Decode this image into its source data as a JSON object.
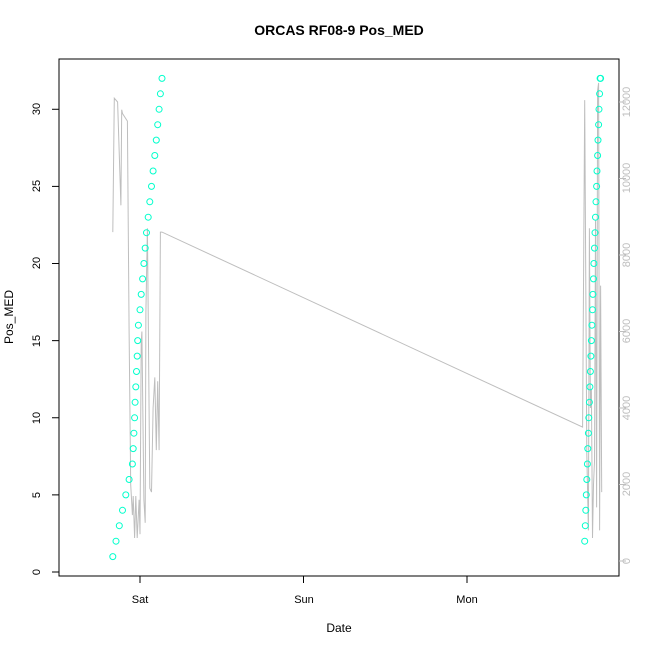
{
  "chart_data": {
    "type": "scatter",
    "title": "ORCAS RF08-9 Pos_MED",
    "xlabel": "Date",
    "ylabel": "Pos_MED",
    "y2label": "",
    "x_ticks": [
      "Sat",
      "Sun",
      "Mon"
    ],
    "y_ticks": [
      "0",
      "5",
      "10",
      "15",
      "20",
      "25",
      "30"
    ],
    "y2_ticks": [
      "0",
      "2000",
      "4000",
      "6000",
      "8000",
      "10000",
      "12000"
    ],
    "ylim": [
      0,
      33
    ],
    "y2lim": [
      0,
      12800
    ],
    "point_color": "#00ffcc",
    "line_color": "#bebebe",
    "series": [
      {
        "role": "points",
        "axis": "left",
        "x": [
          "Fri 20:00",
          "Fri 20:29",
          "Fri 20:58",
          "Fri 21:26",
          "Fri 21:55",
          "Fri 22:24",
          "Fri 22:53",
          "Fri 23:00",
          "Fri 23:06",
          "Fri 23:12",
          "Fri 23:17",
          "Fri 23:23",
          "Fri 23:29",
          "Fri 23:35",
          "Fri 23:40",
          "Fri 23:46",
          "Sat 00:00",
          "Sat 00:11",
          "Sat 00:23",
          "Sat 00:34",
          "Sat 00:46",
          "Sat 00:57",
          "Sat 01:12",
          "Sat 01:26",
          "Sat 01:41",
          "Sat 01:55",
          "Sat 02:10",
          "Sat 02:24",
          "Sat 02:36",
          "Sat 02:48",
          "Sat 03:00",
          "Sat 03:14"
        ],
        "values": [
          1,
          2,
          3,
          4,
          5,
          6,
          7,
          8,
          9,
          10,
          11,
          12,
          13,
          14,
          15,
          16,
          17,
          18,
          19,
          20,
          21,
          22,
          23,
          24,
          25,
          26,
          27,
          28,
          29,
          30,
          31,
          32
        ]
      },
      {
        "role": "points",
        "axis": "left",
        "x": [
          "Mon 17:17",
          "Mon 17:22",
          "Mon 17:26",
          "Mon 17:31",
          "Mon 17:35",
          "Mon 17:40",
          "Mon 17:44",
          "Mon 17:49",
          "Mon 17:53",
          "Mon 17:58",
          "Mon 18:02",
          "Mon 18:07",
          "Mon 18:11",
          "Mon 18:16",
          "Mon 18:20",
          "Mon 18:25",
          "Mon 18:29",
          "Mon 18:34",
          "Mon 18:38",
          "Mon 18:43",
          "Mon 18:47",
          "Mon 18:52",
          "Mon 18:56",
          "Mon 19:01",
          "Mon 19:05",
          "Mon 19:10",
          "Mon 19:14",
          "Mon 19:19",
          "Mon 19:23",
          "Mon 19:28",
          "Mon 19:32",
          "Mon 19:37"
        ],
        "values": [
          2,
          3,
          4,
          5,
          6,
          7,
          8,
          9,
          10,
          11,
          12,
          13,
          14,
          15,
          16,
          17,
          18,
          19,
          20,
          21,
          22,
          23,
          24,
          25,
          26,
          27,
          28,
          29,
          30,
          31,
          32,
          32
        ]
      },
      {
        "role": "line",
        "axis": "right",
        "x": [
          "Fri 20:00",
          "Fri 20:14",
          "Fri 20:43",
          "Fri 21:12",
          "Fri 21:19",
          "Fri 21:26",
          "Fri 22:09",
          "Fri 22:24",
          "Fri 22:38",
          "Fri 22:53",
          "Fri 23:00",
          "Fri 23:12",
          "Fri 23:23",
          "Fri 23:35",
          "Fri 23:52",
          "Sat 00:00",
          "Sat 00:11",
          "Sat 00:17",
          "Sat 00:34",
          "Sat 00:46",
          "Sat 00:52",
          "Sat 01:05",
          "Sat 01:12",
          "Sat 01:26",
          "Sat 01:41",
          "Sat 01:55",
          "Sat 02:10",
          "Sat 02:24",
          "Sat 02:36",
          "Sat 02:48",
          "Sat 03:00",
          "Sat 03:14",
          "Mon 16:58",
          "Mon 17:17",
          "Mon 17:35",
          "Mon 17:49",
          "Mon 17:58",
          "Mon 18:07",
          "Mon 18:16",
          "Mon 18:25",
          "Mon 18:34",
          "Mon 18:43",
          "Mon 18:52",
          "Mon 19:01",
          "Mon 19:10",
          "Mon 19:19",
          "Mon 19:28",
          "Mon 19:37",
          "Mon 19:46"
        ],
        "values": [
          8600,
          12100,
          12000,
          9300,
          11800,
          11700,
          11500,
          6000,
          2000,
          1200,
          1700,
          600,
          1700,
          600,
          1600,
          700,
          5700,
          6000,
          1600,
          1000,
          6500,
          8700,
          6500,
          1900,
          1800,
          4000,
          4800,
          2900,
          4700,
          2900,
          8600,
          8600,
          3500,
          12050,
          2800,
          800,
          8700,
          4000,
          4500,
          600,
          2000,
          2600,
          8900,
          1400,
          12300,
          12500,
          800,
          7200,
          1800
        ]
      }
    ]
  }
}
